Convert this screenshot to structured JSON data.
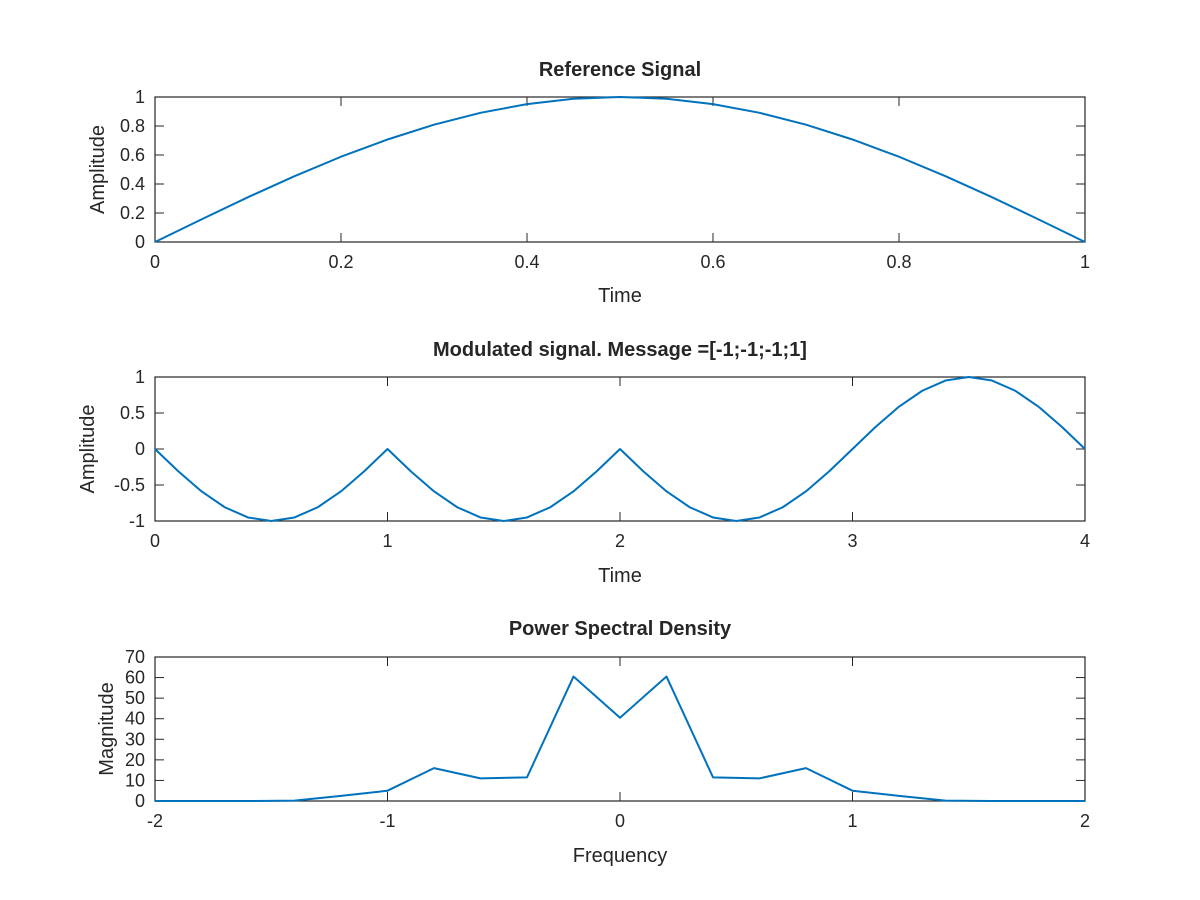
{
  "chart_data": [
    {
      "type": "line",
      "title": "Reference Signal",
      "xlabel": "Time",
      "ylabel": "Amplitude",
      "xlim": [
        0,
        1
      ],
      "ylim": [
        0,
        1
      ],
      "xticks": [
        0,
        0.2,
        0.4,
        0.6,
        0.8,
        1
      ],
      "xtick_labels": [
        "0",
        "0.2",
        "0.4",
        "0.6",
        "0.8",
        "1"
      ],
      "yticks": [
        0,
        0.2,
        0.4,
        0.6,
        0.8,
        1
      ],
      "ytick_labels": [
        "0",
        "0.2",
        "0.4",
        "0.6",
        "0.8",
        "1"
      ],
      "grid": false,
      "series": [
        {
          "color": "#0072bd",
          "x": [
            0,
            0.05,
            0.1,
            0.15,
            0.2,
            0.25,
            0.3,
            0.35,
            0.4,
            0.45,
            0.5,
            0.55,
            0.6,
            0.65,
            0.7,
            0.75,
            0.8,
            0.85,
            0.9,
            0.95,
            1
          ],
          "y": [
            0,
            0.156,
            0.309,
            0.454,
            0.588,
            0.707,
            0.809,
            0.891,
            0.951,
            0.988,
            1,
            0.988,
            0.951,
            0.891,
            0.809,
            0.707,
            0.588,
            0.454,
            0.309,
            0.156,
            0
          ]
        }
      ]
    },
    {
      "type": "line",
      "title": "Modulated signal. Message =[-1;-1;-1;1]",
      "xlabel": "Time",
      "ylabel": "Amplitude",
      "xlim": [
        0,
        4
      ],
      "ylim": [
        -1,
        1
      ],
      "xticks": [
        0,
        1,
        2,
        3,
        4
      ],
      "xtick_labels": [
        "0",
        "1",
        "2",
        "3",
        "4"
      ],
      "yticks": [
        -1,
        -0.5,
        0,
        0.5,
        1
      ],
      "ytick_labels": [
        "-1",
        "-0.5",
        "0",
        "0.5",
        "1"
      ],
      "grid": false,
      "series": [
        {
          "color": "#0072bd",
          "x": [
            0,
            0.1,
            0.2,
            0.3,
            0.4,
            0.5,
            0.6,
            0.7,
            0.8,
            0.9,
            1.0,
            1.1,
            1.2,
            1.3,
            1.4,
            1.5,
            1.6,
            1.7,
            1.8,
            1.9,
            2.0,
            2.1,
            2.2,
            2.3,
            2.4,
            2.5,
            2.6,
            2.7,
            2.8,
            2.9,
            3.0,
            3.1,
            3.2,
            3.3,
            3.4,
            3.5,
            3.6,
            3.7,
            3.8,
            3.9,
            4.0
          ],
          "y": [
            0,
            -0.309,
            -0.588,
            -0.809,
            -0.951,
            -1,
            -0.951,
            -0.809,
            -0.588,
            -0.309,
            0,
            -0.309,
            -0.588,
            -0.809,
            -0.951,
            -1,
            -0.951,
            -0.809,
            -0.588,
            -0.309,
            0,
            -0.309,
            -0.588,
            -0.809,
            -0.951,
            -1,
            -0.951,
            -0.809,
            -0.588,
            -0.309,
            0,
            0.309,
            0.588,
            0.809,
            0.951,
            1,
            0.951,
            0.809,
            0.588,
            0.309,
            0
          ]
        }
      ]
    },
    {
      "type": "line",
      "title": "Power Spectral Density",
      "xlabel": "Frequency",
      "ylabel": "Magnitude",
      "xlim": [
        -2,
        2
      ],
      "ylim": [
        0,
        70
      ],
      "xticks": [
        -2,
        -1,
        0,
        1,
        2
      ],
      "xtick_labels": [
        "-2",
        "-1",
        "0",
        "1",
        "2"
      ],
      "yticks": [
        0,
        10,
        20,
        30,
        40,
        50,
        60,
        70
      ],
      "ytick_labels": [
        "0",
        "10",
        "20",
        "30",
        "40",
        "50",
        "60",
        "70"
      ],
      "grid": false,
      "series": [
        {
          "color": "#0072bd",
          "x": [
            -2,
            -1.8,
            -1.6,
            -1.4,
            -1.2,
            -1.0,
            -0.8,
            -0.6,
            -0.4,
            -0.2,
            0,
            0.2,
            0.4,
            0.6,
            0.8,
            1.0,
            1.2,
            1.4,
            1.6,
            1.8,
            2.0
          ],
          "y": [
            0,
            0,
            0,
            0.2,
            2.5,
            5,
            16,
            11,
            11.5,
            60.5,
            40.5,
            60.5,
            11.5,
            11,
            16,
            5,
            2.5,
            0.2,
            0,
            0,
            0
          ]
        }
      ]
    }
  ]
}
